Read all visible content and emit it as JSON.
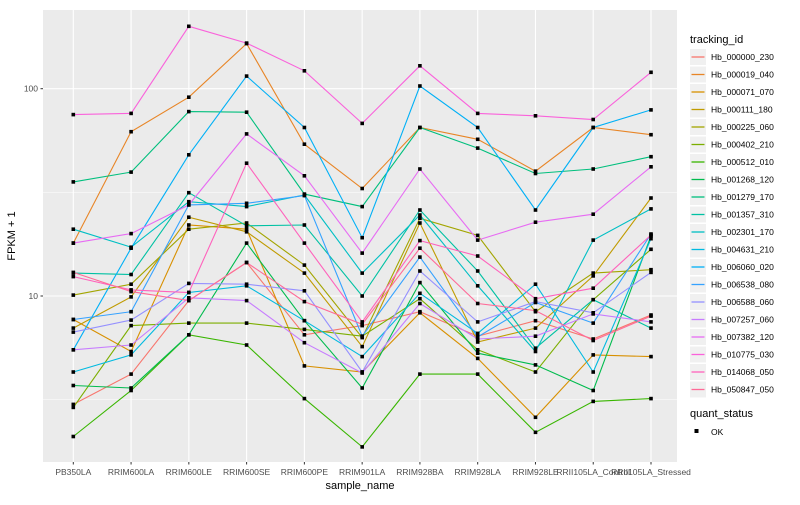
{
  "chart_data": {
    "type": "line",
    "title": "",
    "xlabel": "sample_name",
    "ylabel": "FPKM + 1",
    "y_scale": "log10",
    "ylim": [
      1.55,
      245
    ],
    "y_major_ticks": [
      10,
      100
    ],
    "y_minor_gridlines": [
      3.162,
      31.62
    ],
    "grid": true,
    "panel_background": "#ebebeb",
    "gridline_color": "#ffffff",
    "point_shape": "filled-square",
    "point_color": "#000000",
    "legend_position": "right",
    "categories": [
      "PB350LA",
      "RRIM600LA",
      "RRIM600LE",
      "RRIM600SE",
      "RRIM600PE",
      "RRIM901LA",
      "RRIM928BA",
      "RRIM928LA",
      "RRIM928LE",
      "RRII105LA_Control",
      "RRII105LA_Stressed"
    ],
    "series": [
      {
        "name": "Hb_000000_230",
        "color": "#F8766D",
        "values": [
          3.0,
          4.2,
          9.5,
          14.5,
          6.5,
          7.2,
          8.4,
          6.4,
          7.6,
          6.2,
          8.1
        ]
      },
      {
        "name": "Hb_000019_040",
        "color": "#E88526",
        "values": [
          18,
          62,
          91,
          165,
          54,
          33,
          65,
          57,
          40,
          65,
          60
        ]
      },
      {
        "name": "Hb_000071_070",
        "color": "#D89000",
        "values": [
          7.7,
          5.4,
          22,
          21,
          4.6,
          4.3,
          8.3,
          5.0,
          2.6,
          5.2,
          5.1
        ]
      },
      {
        "name": "Hb_000111_180",
        "color": "#C09B00",
        "values": [
          7.0,
          9.9,
          24,
          20.4,
          12.9,
          5.7,
          22.5,
          6.0,
          7.0,
          12.5,
          29.7
        ]
      },
      {
        "name": "Hb_000225_060",
        "color": "#A3A500",
        "values": [
          10.1,
          11.4,
          21,
          22.5,
          14.1,
          6.3,
          23.7,
          19.6,
          8.4,
          12.9,
          13.4
        ]
      },
      {
        "name": "Hb_000402_210",
        "color": "#7CAE00",
        "values": [
          2.9,
          7.2,
          7.4,
          7.4,
          6.9,
          6.4,
          9.7,
          5.5,
          4.3,
          9.6,
          16.8
        ]
      },
      {
        "name": "Hb_000512_010",
        "color": "#39B600",
        "values": [
          2.1,
          3.5,
          6.5,
          5.8,
          3.2,
          1.87,
          4.2,
          4.2,
          2.2,
          3.1,
          3.2
        ]
      },
      {
        "name": "Hb_001268_120",
        "color": "#00BB4E",
        "values": [
          3.7,
          3.6,
          6.5,
          18,
          7.6,
          3.6,
          11.6,
          5.3,
          4.65,
          3.5,
          19.5
        ]
      },
      {
        "name": "Hb_001279_170",
        "color": "#00BF7D",
        "values": [
          35.5,
          39.6,
          77.5,
          77,
          31,
          27,
          65,
          51.7,
          39,
          41,
          47
        ]
      },
      {
        "name": "Hb_001357_310",
        "color": "#00C1A3",
        "values": [
          12.9,
          12.7,
          31.5,
          21.8,
          22,
          10,
          26,
          13.2,
          5.6,
          9.6,
          7.0
        ]
      },
      {
        "name": "Hb_002301_170",
        "color": "#00BFC4",
        "values": [
          21,
          17.2,
          28.5,
          27,
          30.7,
          12.9,
          24.6,
          11.2,
          5.4,
          18.6,
          26.3
        ]
      },
      {
        "name": "Hb_004631_210",
        "color": "#00BAE0",
        "values": [
          4.3,
          5.2,
          10.4,
          11.2,
          7.6,
          5.1,
          10.3,
          6.6,
          11.4,
          4.3,
          18.9
        ]
      },
      {
        "name": "Hb_006060_020",
        "color": "#00B0F6",
        "values": [
          5.5,
          17,
          48,
          115,
          65,
          19.1,
          103,
          65,
          26,
          65,
          79
        ]
      },
      {
        "name": "Hb_006538_080",
        "color": "#35A2FF",
        "values": [
          7.7,
          8.4,
          27.5,
          28,
          30.5,
          6.4,
          15.4,
          6.35,
          9.3,
          7.4,
          19.9
        ]
      },
      {
        "name": "Hb_006588_060",
        "color": "#9590FF",
        "values": [
          6.7,
          7.65,
          11.5,
          11.4,
          10.6,
          4.3,
          13.2,
          7.5,
          9.4,
          8.3,
          13.0
        ]
      },
      {
        "name": "Hb_007257_060",
        "color": "#C77CFF",
        "values": [
          5.5,
          5.8,
          9.8,
          9.5,
          5.95,
          4.25,
          9.2,
          6.2,
          6.4,
          8.2,
          7.5
        ]
      },
      {
        "name": "Hb_007382_120",
        "color": "#E76BF3",
        "values": [
          18,
          20,
          27.5,
          60.5,
          38,
          16.1,
          41,
          18.6,
          22.7,
          24.8,
          42
        ]
      },
      {
        "name": "Hb_010775_030",
        "color": "#FA62DB",
        "values": [
          75,
          76,
          200,
          166,
          122,
          68,
          129,
          76,
          74,
          71,
          120
        ]
      },
      {
        "name": "Hb_014068_050",
        "color": "#FF62BC",
        "values": [
          12.4,
          10.7,
          10.4,
          43.7,
          18,
          7.5,
          18.5,
          15.6,
          9.7,
          10.9,
          19.7
        ]
      },
      {
        "name": "Hb_050847_050",
        "color": "#FF6A98",
        "values": [
          13,
          10.5,
          9.5,
          14.5,
          9.4,
          7.3,
          17,
          9.2,
          8.5,
          6.1,
          8.0
        ]
      }
    ],
    "legend": {
      "color_title": "tracking_id",
      "shape_title": "quant_status",
      "shape_items": [
        {
          "label": "OK",
          "shape": "filled-square",
          "color": "#000000"
        }
      ],
      "key_background": "#f0f0f0"
    }
  }
}
